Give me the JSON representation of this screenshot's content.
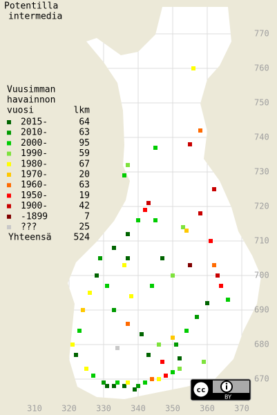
{
  "title": [
    "Potentilla",
    "intermedia"
  ],
  "legend": {
    "heading": [
      "Vuusimman",
      "havainnon",
      "vuosi"
    ],
    "count_heading": "lkm",
    "entries": [
      {
        "label": "2015-",
        "count": 64,
        "color": "#006400"
      },
      {
        "label": "2010-",
        "count": 63,
        "color": "#009a00"
      },
      {
        "label": "2000-",
        "count": 95,
        "color": "#00cc00"
      },
      {
        "label": "1990-",
        "count": 59,
        "color": "#7ee23c"
      },
      {
        "label": "1980-",
        "count": 67,
        "color": "#ffff00"
      },
      {
        "label": "1970-",
        "count": 20,
        "color": "#ffc800"
      },
      {
        "label": "1960-",
        "count": 63,
        "color": "#ff6a00"
      },
      {
        "label": "1950-",
        "count": 19,
        "color": "#ff0000"
      },
      {
        "label": "1900-",
        "count": 42,
        "color": "#c80000"
      },
      {
        "label": "-1899",
        "count": 7,
        "color": "#800000"
      },
      {
        "label": "???",
        "count": 25,
        "color": "#c8c8c8"
      }
    ],
    "total_label": "Yhteensä",
    "total": 524
  },
  "y_axis": {
    "ticks": [
      770,
      760,
      750,
      740,
      730,
      720,
      710,
      700,
      690,
      680,
      670
    ]
  },
  "x_axis": {
    "ticks": [
      310,
      320,
      330,
      340,
      350,
      360,
      370
    ]
  },
  "squares": [
    [
      330,
      669,
      1
    ],
    [
      331,
      668,
      0
    ],
    [
      333,
      668,
      0
    ],
    [
      334,
      669,
      2
    ],
    [
      336,
      668,
      0
    ],
    [
      337,
      669,
      4
    ],
    [
      339,
      667,
      0
    ],
    [
      340,
      668,
      1
    ],
    [
      342,
      669,
      2
    ],
    [
      344,
      670,
      6
    ],
    [
      346,
      670,
      4
    ],
    [
      348,
      671,
      7
    ],
    [
      350,
      672,
      2
    ],
    [
      352,
      673,
      3
    ],
    [
      327,
      671,
      2
    ],
    [
      325,
      673,
      4
    ],
    [
      322,
      677,
      0
    ],
    [
      321,
      680,
      4
    ],
    [
      323,
      684,
      2
    ],
    [
      324,
      690,
      5
    ],
    [
      326,
      695,
      4
    ],
    [
      328,
      700,
      0
    ],
    [
      329,
      705,
      1
    ],
    [
      333,
      708,
      0
    ],
    [
      337,
      712,
      0
    ],
    [
      340,
      716,
      2
    ],
    [
      342,
      719,
      7
    ],
    [
      343,
      721,
      8
    ],
    [
      345,
      716,
      2
    ],
    [
      353,
      714,
      3
    ],
    [
      354,
      713,
      5
    ],
    [
      358,
      718,
      8
    ],
    [
      361,
      710,
      7
    ],
    [
      362,
      703,
      6
    ],
    [
      363,
      700,
      8
    ],
    [
      364,
      697,
      7
    ],
    [
      366,
      693,
      2
    ],
    [
      360,
      692,
      0
    ],
    [
      357,
      688,
      1
    ],
    [
      354,
      684,
      2
    ],
    [
      350,
      682,
      5
    ],
    [
      346,
      680,
      3
    ],
    [
      341,
      683,
      0
    ],
    [
      337,
      686,
      6
    ],
    [
      333,
      690,
      1
    ],
    [
      338,
      694,
      4
    ],
    [
      344,
      697,
      2
    ],
    [
      350,
      700,
      3
    ],
    [
      355,
      703,
      9
    ],
    [
      347,
      705,
      0
    ],
    [
      336,
      703,
      4
    ],
    [
      331,
      697,
      2
    ],
    [
      334,
      679,
      10
    ],
    [
      343,
      677,
      0
    ],
    [
      347,
      675,
      7
    ],
    [
      352,
      676,
      0
    ],
    [
      351,
      680,
      1
    ],
    [
      362,
      725,
      8
    ],
    [
      358,
      742,
      6
    ],
    [
      355,
      738,
      8
    ],
    [
      356,
      760,
      4
    ],
    [
      345,
      737,
      2
    ],
    [
      336,
      729,
      2
    ],
    [
      337,
      732,
      3
    ],
    [
      337,
      705,
      0
    ],
    [
      359,
      675,
      3
    ]
  ],
  "license": {
    "cc": "cc",
    "by": "BY"
  }
}
